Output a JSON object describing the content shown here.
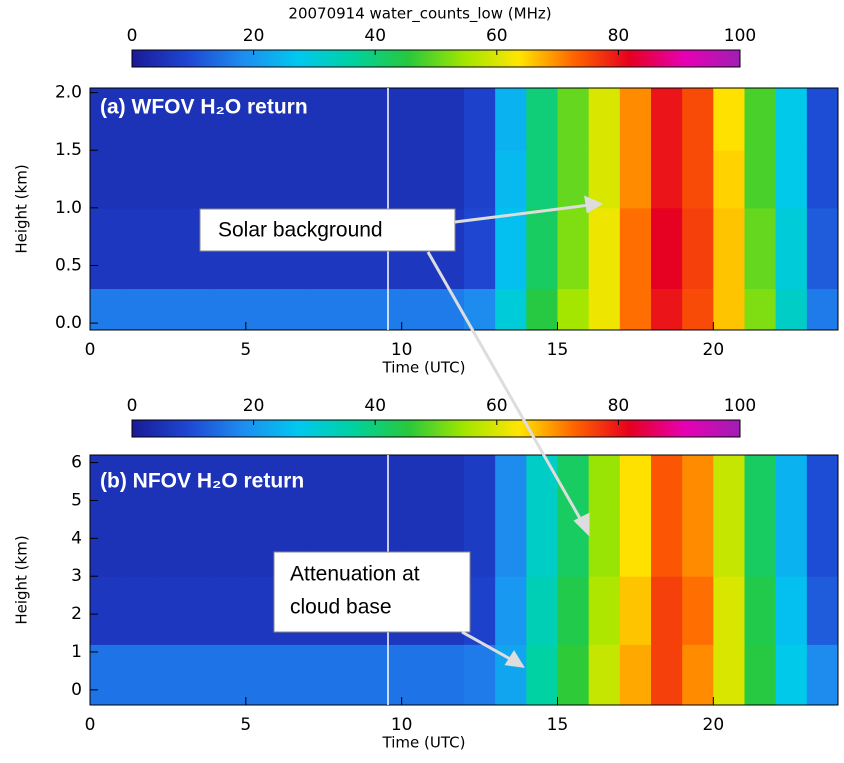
{
  "chart_data": [
    {
      "type": "heatmap",
      "title": "(a) WFOV H₂O return",
      "xlabel": "Time (UTC)",
      "ylabel": "Height (km)",
      "colorbar": {
        "title": "20070914 water_counts_low (MHz)",
        "lim": [
          0,
          100
        ],
        "ticks": [
          0,
          20,
          40,
          60,
          80,
          100
        ]
      },
      "colors": [
        "#1a1a96",
        "#1e46d2",
        "#1e8cf0",
        "#00c8f0",
        "#00d2a0",
        "#28c83c",
        "#a0e600",
        "#ffe600",
        "#ff6400",
        "#e6001e",
        "#e600b4",
        "#a01eb4"
      ],
      "xlim": [
        0,
        24
      ],
      "xticks": [
        0,
        5,
        10,
        15,
        20
      ],
      "ylim": [
        -0.06,
        2.04
      ],
      "yticks": [
        {
          "value": 0,
          "label": "0.0"
        },
        0.5,
        {
          "value": 1,
          "label": "1.0"
        },
        1.5,
        {
          "value": 2,
          "label": "2.0"
        }
      ],
      "x": [
        0,
        1,
        2,
        3,
        4,
        5,
        6,
        7,
        8,
        9,
        10,
        11,
        12,
        13,
        14,
        15,
        16,
        17,
        18,
        19,
        20,
        21,
        22,
        23
      ],
      "y": [
        0,
        0.3,
        1.0,
        1.5
      ],
      "values": [
        [
          16,
          16,
          16,
          16,
          16,
          16,
          16,
          16,
          16,
          16,
          16,
          16,
          18,
          30,
          45,
          55,
          62,
          72,
          80,
          75,
          66,
          52,
          32,
          16
        ],
        [
          6,
          6,
          6,
          6,
          6,
          6,
          6,
          6,
          6,
          6,
          6,
          6,
          9,
          26,
          42,
          52,
          62,
          72,
          82,
          76,
          66,
          50,
          30,
          12
        ],
        [
          5,
          5,
          5,
          5,
          5,
          5,
          5,
          5,
          5,
          5,
          5,
          5,
          8,
          25,
          40,
          50,
          60,
          70,
          80,
          75,
          65,
          48,
          28,
          10
        ],
        [
          5,
          5,
          5,
          5,
          5,
          5,
          5,
          5,
          5,
          5,
          5,
          5,
          8,
          24,
          40,
          50,
          60,
          70,
          80,
          75,
          64,
          48,
          28,
          10
        ]
      ]
    },
    {
      "type": "heatmap",
      "title": "(b) NFOV H₂O return",
      "xlabel": "Time (UTC)",
      "ylabel": "Height (km)",
      "colorbar": {
        "lim": [
          0,
          100
        ],
        "ticks": [
          0,
          20,
          40,
          60,
          80,
          100
        ]
      },
      "colors": [
        "#1a1a96",
        "#1e46d2",
        "#1e8cf0",
        "#00c8f0",
        "#00d2a0",
        "#28c83c",
        "#a0e600",
        "#ffe600",
        "#ff6400",
        "#e6001e",
        "#e600b4",
        "#a01eb4"
      ],
      "xlim": [
        0,
        24
      ],
      "xticks": [
        0,
        5,
        10,
        15,
        20
      ],
      "ylim": [
        -0.4,
        6.2
      ],
      "yticks": [
        0,
        1,
        2,
        3,
        4,
        5,
        6
      ],
      "x": [
        0,
        1,
        2,
        3,
        4,
        5,
        6,
        7,
        8,
        9,
        10,
        11,
        12,
        13,
        14,
        15,
        16,
        17,
        18,
        19,
        20,
        21,
        22,
        23
      ],
      "y": [
        0,
        1.2,
        3,
        5
      ],
      "values": [
        [
          15,
          15,
          15,
          15,
          15,
          15,
          15,
          15,
          15,
          15,
          15,
          15,
          16,
          22,
          36,
          46,
          58,
          68,
          76,
          70,
          60,
          45,
          28,
          18
        ],
        [
          6,
          6,
          6,
          6,
          6,
          6,
          6,
          6,
          6,
          6,
          6,
          6,
          8,
          20,
          34,
          44,
          56,
          66,
          76,
          72,
          60,
          44,
          26,
          12
        ],
        [
          5,
          5,
          5,
          5,
          5,
          5,
          5,
          5,
          5,
          5,
          5,
          5,
          7,
          18,
          32,
          42,
          54,
          64,
          74,
          70,
          58,
          42,
          24,
          10
        ],
        [
          5,
          5,
          5,
          5,
          5,
          5,
          5,
          5,
          5,
          5,
          5,
          5,
          7,
          18,
          32,
          42,
          54,
          64,
          74,
          70,
          58,
          42,
          24,
          10
        ]
      ]
    }
  ],
  "annotations": [
    {
      "text": "Solar background"
    },
    {
      "text": "Attenuation at"
    },
    {
      "text": "cloud base"
    }
  ]
}
